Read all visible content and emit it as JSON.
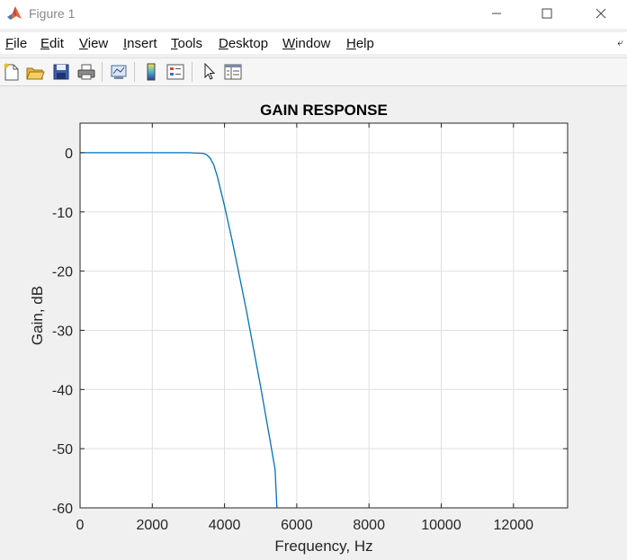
{
  "window": {
    "title": "Figure 1",
    "icons": [
      "matlab-logo-icon",
      "minimize-icon",
      "maximize-icon",
      "close-icon"
    ]
  },
  "menu": {
    "items": [
      {
        "label": "File",
        "mnemonic": "F",
        "rest": "ile"
      },
      {
        "label": "Edit",
        "mnemonic": "E",
        "rest": "dit"
      },
      {
        "label": "View",
        "mnemonic": "V",
        "rest": "iew"
      },
      {
        "label": "Insert",
        "mnemonic": "I",
        "rest": "nsert"
      },
      {
        "label": "Tools",
        "mnemonic": "T",
        "rest": "ools"
      },
      {
        "label": "Desktop",
        "mnemonic": "D",
        "rest": "esktop"
      },
      {
        "label": "Window",
        "mnemonic": "W",
        "rest": "indow"
      },
      {
        "label": "Help",
        "mnemonic": "H",
        "rest": "elp"
      }
    ]
  },
  "toolbar": {
    "buttons": [
      "new-figure-icon",
      "open-file-icon",
      "save-icon",
      "print-icon",
      "link-plot-icon",
      "colorbar-icon",
      "legend-icon",
      "edit-plot-arrow-icon",
      "property-inspector-icon"
    ]
  },
  "colors": {
    "line": "#0072bd",
    "grid": "#dfdfdf",
    "axes": "#262626"
  },
  "chart_data": {
    "type": "line",
    "title": "GAIN RESPONSE",
    "xlabel": "Frequency, Hz",
    "ylabel": "Gain, dB",
    "xlim": [
      0,
      13500
    ],
    "ylim": [
      -60,
      5
    ],
    "xticks": [
      0,
      2000,
      4000,
      6000,
      8000,
      10000,
      12000
    ],
    "yticks": [
      0,
      -10,
      -20,
      -30,
      -40,
      -50,
      -60
    ],
    "xticklabels": [
      "0",
      "2000",
      "4000",
      "6000",
      "8000",
      "10000",
      "12000"
    ],
    "yticklabels": [
      "0",
      "-10",
      "-20",
      "-30",
      "-40",
      "-50",
      "-60"
    ],
    "grid": true,
    "series": [
      {
        "x": [
          0,
          1000,
          2000,
          3000,
          3400,
          3500,
          3600,
          3700,
          3800,
          3900,
          4000,
          4200,
          4400,
          4600,
          4800,
          5000,
          5200,
          5400,
          5450
        ],
        "y": [
          0,
          0,
          0,
          0,
          -0.1,
          -0.3,
          -0.9,
          -2,
          -4,
          -6.5,
          -9,
          -14.5,
          -20.5,
          -26.5,
          -33,
          -39.5,
          -46.5,
          -53.5,
          -60
        ]
      }
    ]
  }
}
